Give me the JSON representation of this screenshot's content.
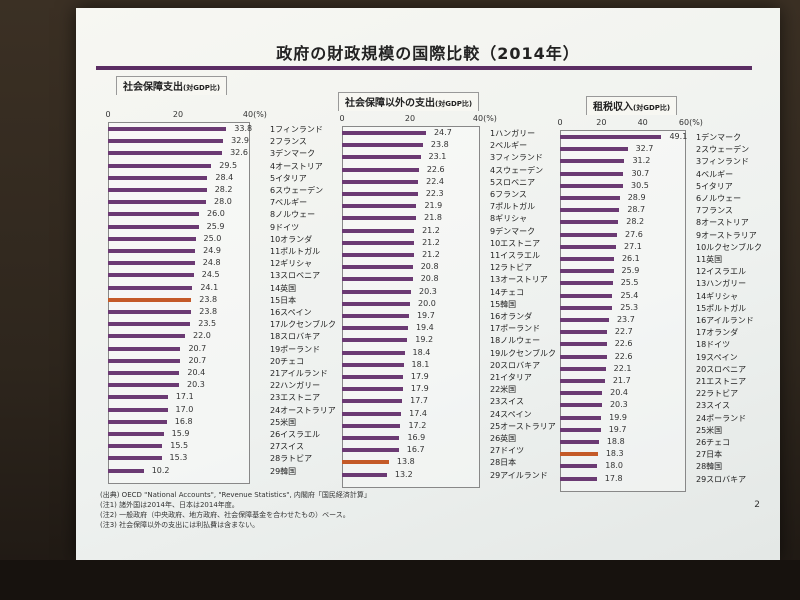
{
  "slide": {
    "title": "政府の財政規模の国際比較（2014年）",
    "page_number": "2",
    "notes": [
      "(出典) OECD \"National Accounts\", \"Revenue Statistics\", 内閣府「国民経済計算」",
      "(注1) 諸外国は2014年、日本は2014年度。",
      "(注2) 一般政府（中央政府、地方政府、社会保障基金を合わせたもの）ベース。",
      "(注3) 社会保障以外の支出には利払費は含まない。"
    ]
  },
  "colors": {
    "bar": "#6b3a73",
    "highlight": "#c45a28",
    "accent_line": "#5b2d63"
  },
  "chart_data": [
    {
      "type": "bar",
      "orientation": "horizontal",
      "title": "社会保障支出",
      "title_note": "(対GDP比)",
      "unit": "(%)",
      "xlim": [
        0,
        40
      ],
      "ticks": [
        "0",
        "20",
        "40"
      ],
      "highlight": "15日本",
      "categories": [
        "1フィンランド",
        "2フランス",
        "3デンマーク",
        "4オーストリア",
        "5イタリア",
        "6スウェーデン",
        "7ベルギー",
        "8ノルウェー",
        "9ドイツ",
        "10オランダ",
        "11ポルトガル",
        "12ギリシャ",
        "13スロベニア",
        "14英国",
        "15日本",
        "16スペイン",
        "17ルクセンブルク",
        "18スロバキア",
        "19ポーランド",
        "20チェコ",
        "21アイルランド",
        "22ハンガリー",
        "23エストニア",
        "24オーストラリア",
        "25米国",
        "26イスラエル",
        "27スイス",
        "28ラトビア",
        "29韓国"
      ],
      "values": [
        33.8,
        32.9,
        32.6,
        29.5,
        28.4,
        28.2,
        28.0,
        26.0,
        25.9,
        25.0,
        24.9,
        24.8,
        24.5,
        24.1,
        23.8,
        23.8,
        23.5,
        22.0,
        20.7,
        20.7,
        20.4,
        20.3,
        17.1,
        17.0,
        16.8,
        15.9,
        15.5,
        15.3,
        10.2
      ],
      "value_labels": [
        "33.8",
        "32.9",
        "32.6",
        "29.5",
        "28.4",
        "28.2",
        "28.0",
        "26.0",
        "25.9",
        "25.0",
        "24.9",
        "24.8",
        "24.5",
        "24.1",
        "23.8",
        "23.8",
        "23.5",
        "22.0",
        "20.7",
        "20.7",
        "20.4",
        "20.3",
        "17.1",
        "17.0",
        "16.8",
        "15.9",
        "15.5",
        "15.3",
        "10.2"
      ]
    },
    {
      "type": "bar",
      "orientation": "horizontal",
      "title": "社会保障以外の支出",
      "title_note": "(対GDP比)",
      "unit": "(%)",
      "xlim": [
        0,
        40
      ],
      "ticks": [
        "0",
        "20",
        "40"
      ],
      "highlight": "28日本",
      "categories": [
        "1ハンガリー",
        "2ベルギー",
        "3フィンランド",
        "4スウェーデン",
        "5スロベニア",
        "6フランス",
        "7ポルトガル",
        "8ギリシャ",
        "9デンマーク",
        "10エストニア",
        "11イスラエル",
        "12ラトビア",
        "13オーストリア",
        "14チェコ",
        "15韓国",
        "16オランダ",
        "17ポーランド",
        "18ノルウェー",
        "19ルクセンブルク",
        "20スロバキア",
        "21イタリア",
        "22米国",
        "23スイス",
        "24スペイン",
        "25オーストラリア",
        "26英国",
        "27ドイツ",
        "28日本",
        "29アイルランド"
      ],
      "values": [
        24.7,
        23.8,
        23.1,
        22.6,
        22.4,
        22.3,
        21.9,
        21.8,
        21.2,
        21.2,
        21.2,
        20.8,
        20.8,
        20.3,
        20.0,
        19.7,
        19.4,
        19.2,
        18.4,
        18.1,
        17.9,
        17.9,
        17.7,
        17.4,
        17.2,
        16.9,
        16.7,
        13.8,
        13.2
      ],
      "value_labels": [
        "24.7",
        "23.8",
        "23.1",
        "22.6",
        "22.4",
        "22.3",
        "21.9",
        "21.8",
        "21.2",
        "21.2",
        "21.2",
        "20.8",
        "20.8",
        "20.3",
        "20.0",
        "19.7",
        "19.4",
        "19.2",
        "18.4",
        "18.1",
        "17.9",
        "17.9",
        "17.7",
        "17.4",
        "17.2",
        "16.9",
        "16.7",
        "13.8",
        "13.2"
      ]
    },
    {
      "type": "bar",
      "orientation": "horizontal",
      "title": "租税収入",
      "title_note": "(対GDP比)",
      "unit": "(%)",
      "xlim": [
        0,
        60
      ],
      "ticks": [
        "0",
        "20",
        "40",
        "60"
      ],
      "highlight": "27日本",
      "categories": [
        "1デンマーク",
        "2スウェーデン",
        "3フィンランド",
        "4ベルギー",
        "5イタリア",
        "6ノルウェー",
        "7フランス",
        "8オーストリア",
        "9オーストラリア",
        "10ルクセンブルク",
        "11英国",
        "12イスラエル",
        "13ハンガリー",
        "14ギリシャ",
        "15ポルトガル",
        "16アイルランド",
        "17オランダ",
        "18ドイツ",
        "19スペイン",
        "20スロベニア",
        "21エストニア",
        "22ラトビア",
        "23スイス",
        "24ポーランド",
        "25米国",
        "26チェコ",
        "27日本",
        "28韓国",
        "29スロバキア"
      ],
      "values": [
        49.1,
        32.7,
        31.2,
        30.7,
        30.5,
        28.9,
        28.7,
        28.2,
        27.6,
        27.1,
        26.1,
        25.9,
        25.5,
        25.4,
        25.3,
        23.7,
        22.7,
        22.6,
        22.6,
        22.1,
        21.7,
        20.4,
        20.3,
        19.9,
        19.7,
        18.8,
        18.3,
        18.0,
        17.8
      ],
      "value_labels": [
        "49.1",
        "32.7",
        "31.2",
        "30.7",
        "30.5",
        "28.9",
        "28.7",
        "28.2",
        "27.6",
        "27.1",
        "26.1",
        "25.9",
        "25.5",
        "25.4",
        "25.3",
        "23.7",
        "22.7",
        "22.6",
        "22.6",
        "22.1",
        "21.7",
        "20.4",
        "20.3",
        "19.9",
        "19.7",
        "18.8",
        "18.3",
        "18.0",
        "17.8"
      ]
    }
  ]
}
